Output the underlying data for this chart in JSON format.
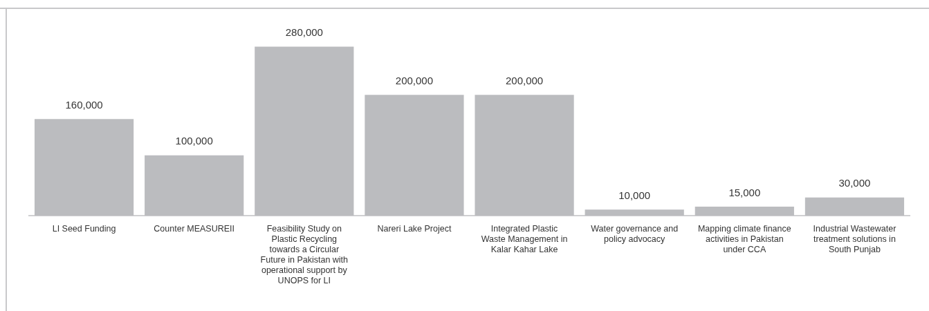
{
  "chart_data": {
    "type": "bar",
    "categories": [
      "LI Seed Funding",
      "Counter MEASUREII",
      "Feasibility Study on Plastic Recycling towards a Circular Future in Pakistan with operational support by UNOPS for LI",
      "Nareri Lake Project",
      "Integrated Plastic Waste Management in Kalar Kahar Lake",
      "Water governance and policy advocacy",
      "Mapping climate finance activities in Pakistan under CCA",
      "Industrial Wastewater treatment solutions in South Punjab"
    ],
    "values": [
      160000,
      100000,
      280000,
      200000,
      200000,
      10000,
      15000,
      30000
    ],
    "color": "#bbbcbf",
    "value_labels": [
      "160,000",
      "100,000",
      "280,000",
      "200,000",
      "200,000",
      "10,000",
      "15,000",
      "30,000"
    ],
    "grid": false,
    "legend": false
  }
}
